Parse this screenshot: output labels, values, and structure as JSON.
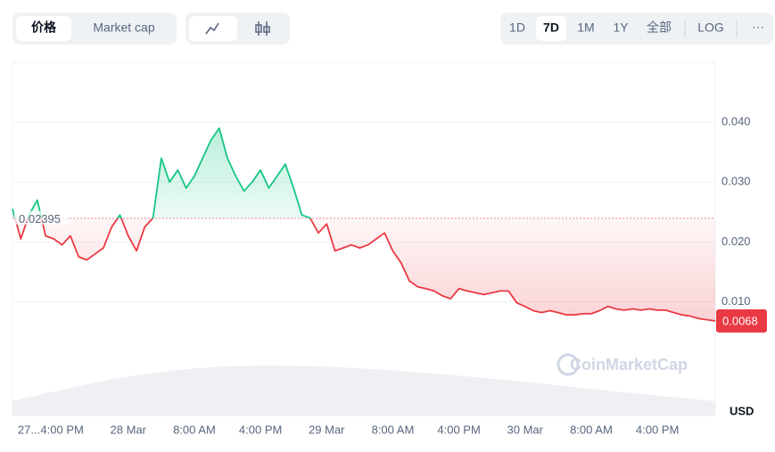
{
  "controls": {
    "tabs": [
      "价格",
      "Market cap"
    ],
    "ranges": [
      "1D",
      "7D",
      "1M",
      "1Y",
      "全部"
    ],
    "log": "LOG",
    "more": "···"
  },
  "chart_data": {
    "type": "line",
    "x": [
      0,
      1,
      2,
      3,
      4,
      5,
      6,
      7,
      8,
      9,
      10,
      11,
      12,
      13,
      14,
      15,
      16,
      17,
      18,
      19,
      20,
      21,
      22,
      23,
      24,
      25,
      26,
      27,
      28,
      29,
      30,
      31,
      32,
      33,
      34,
      35,
      36,
      37,
      38,
      39,
      40,
      41,
      42,
      43,
      44,
      45,
      46,
      47,
      48,
      49,
      50,
      51,
      52,
      53,
      54,
      55,
      56,
      57,
      58,
      59,
      60,
      61,
      62,
      63,
      64,
      65,
      66,
      67,
      68,
      69,
      70,
      71,
      72,
      73,
      74,
      75,
      76,
      77,
      78,
      79,
      80,
      81,
      82,
      83,
      84,
      85
    ],
    "series": [
      {
        "name": "价格",
        "values": [
          0.0255,
          0.0205,
          0.0245,
          0.027,
          0.021,
          0.0205,
          0.0195,
          0.021,
          0.0175,
          0.017,
          0.018,
          0.019,
          0.0225,
          0.0245,
          0.021,
          0.0185,
          0.0225,
          0.024,
          0.034,
          0.03,
          0.032,
          0.029,
          0.031,
          0.034,
          0.037,
          0.039,
          0.034,
          0.031,
          0.0285,
          0.03,
          0.032,
          0.029,
          0.031,
          0.033,
          0.029,
          0.0245,
          0.024,
          0.0215,
          0.023,
          0.0185,
          0.019,
          0.0195,
          0.019,
          0.0195,
          0.0205,
          0.0215,
          0.0185,
          0.0165,
          0.0135,
          0.0125,
          0.0122,
          0.0118,
          0.011,
          0.0105,
          0.0122,
          0.0118,
          0.0115,
          0.0112,
          0.0115,
          0.0118,
          0.0118,
          0.0098,
          0.0092,
          0.0085,
          0.0082,
          0.0085,
          0.0082,
          0.0078,
          0.0078,
          0.008,
          0.008,
          0.0085,
          0.0092,
          0.0088,
          0.0086,
          0.0088,
          0.0086,
          0.0088,
          0.0086,
          0.0086,
          0.0082,
          0.0078,
          0.0076,
          0.0072,
          0.007,
          0.0068
        ]
      }
    ],
    "up_color": "#16c784",
    "down_color": "#ea3943",
    "baseline": {
      "value": 0.02395,
      "label": "0.02395"
    },
    "last": {
      "value": 0.0068,
      "label": "0.0068"
    },
    "xlim": [
      0,
      85
    ],
    "xticks": [
      {
        "value": 2,
        "label": "27..."
      },
      {
        "value": 6,
        "label": "4:00 PM"
      },
      {
        "value": 14,
        "label": "28 Mar"
      },
      {
        "value": 22,
        "label": "8:00 AM"
      },
      {
        "value": 30,
        "label": "4:00 PM"
      },
      {
        "value": 38,
        "label": "29 Mar"
      },
      {
        "value": 46,
        "label": "8:00 AM"
      },
      {
        "value": 54,
        "label": "4:00 PM"
      },
      {
        "value": 62,
        "label": "30 Mar"
      },
      {
        "value": 70,
        "label": "8:00 AM"
      },
      {
        "value": 78,
        "label": "4:00 PM"
      }
    ],
    "ylim": [
      -0.009,
      0.05
    ],
    "yticks": [
      {
        "value": 0.01,
        "label": "0.010"
      },
      {
        "value": 0.02,
        "label": "0.020"
      },
      {
        "value": 0.03,
        "label": "0.030"
      },
      {
        "value": 0.04,
        "label": "0.040"
      }
    ],
    "grid": true,
    "currency": "USD",
    "watermark": "CoinMarketCap"
  }
}
